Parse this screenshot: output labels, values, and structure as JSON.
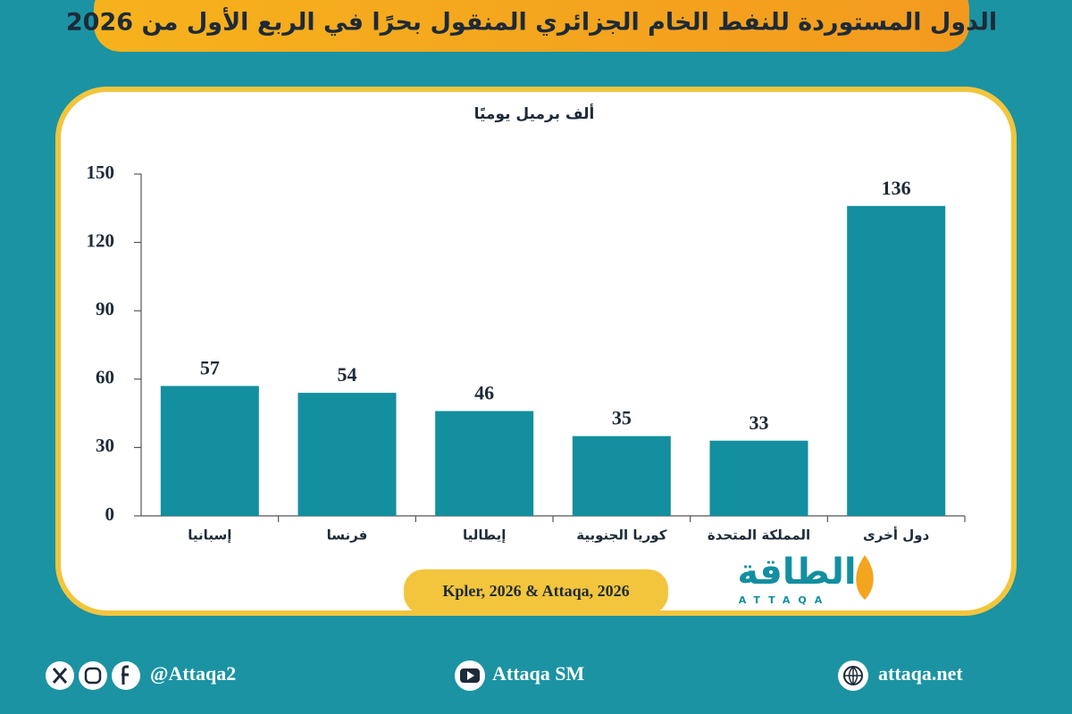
{
  "chart_data": {
    "type": "bar",
    "title": "الدول المستوردة للنفط الخام الجزائري المنقول بحرًا في الربع الأول من 2026",
    "subtitle": "ألف برميل يوميًا",
    "categories": [
      "إسبانيا",
      "فرنسا",
      "إيطاليا",
      "كوريا الجنوبية",
      "المملكة المتحدة",
      "دول أخرى"
    ],
    "values": [
      57,
      54,
      46,
      35,
      33,
      136
    ],
    "color": "#138fa0",
    "ylim": [
      0,
      150
    ],
    "yticks": [
      0,
      30,
      60,
      90,
      120,
      150
    ],
    "source": "Kpler, 2026 & Attaqa, 2026"
  },
  "logo": {
    "name": "الطاقة",
    "latin": "ATTAQA"
  },
  "footer": {
    "social": "@Attaqa2",
    "youtube": "Attaqa SM",
    "website": "attaqa.net"
  }
}
